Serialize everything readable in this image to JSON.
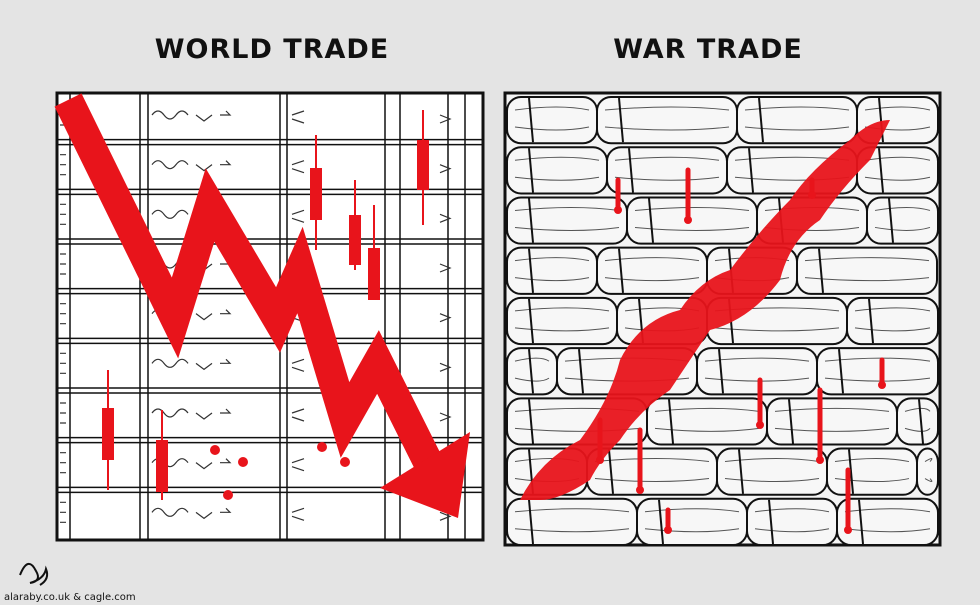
{
  "header": {
    "left_title": "WORLD TRADE",
    "right_title": "WAR TRADE"
  },
  "footer": {
    "credit": "alaraby.co.uk & cagle.com"
  }
}
